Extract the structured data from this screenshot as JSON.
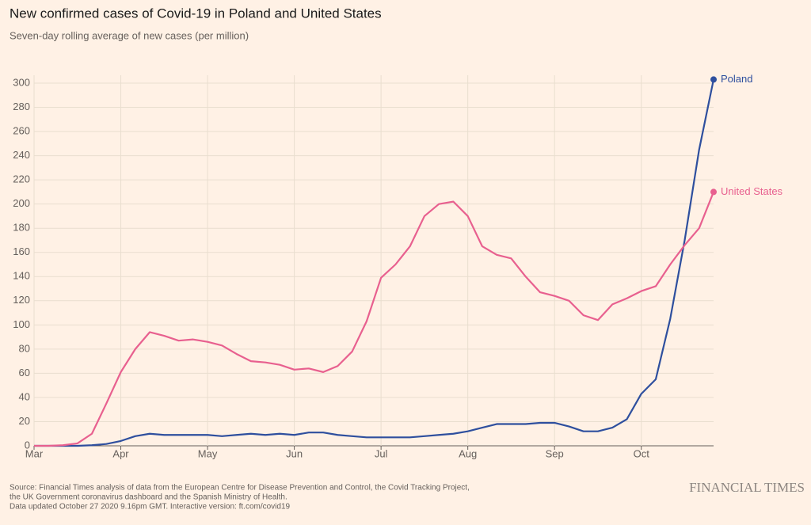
{
  "chart_data": {
    "type": "line",
    "title": "New confirmed cases of Covid-19 in Poland and United States",
    "subtitle": "Seven-day rolling average of new cases (per million)",
    "categories": [
      "Mar",
      null,
      null,
      null,
      null,
      null,
      "Apr",
      null,
      null,
      null,
      null,
      null,
      "May",
      null,
      null,
      null,
      null,
      null,
      "Jun",
      null,
      null,
      null,
      null,
      null,
      "Jul",
      null,
      null,
      null,
      null,
      null,
      "Aug",
      null,
      null,
      null,
      null,
      null,
      "Sep",
      null,
      null,
      null,
      null,
      null,
      "Oct",
      null,
      null,
      null,
      null,
      null
    ],
    "series": [
      {
        "name": "Poland",
        "color": "#2e4f9e",
        "values": [
          0,
          0,
          0,
          0,
          0.5,
          1.5,
          4,
          8,
          10,
          9,
          9,
          9,
          9,
          8,
          9,
          10,
          9,
          10,
          9,
          11,
          11,
          9,
          8,
          7,
          7,
          7,
          7,
          8,
          9,
          10,
          12,
          15,
          18,
          18,
          18,
          19,
          19,
          16,
          12,
          12,
          15,
          22,
          43,
          55,
          105,
          170,
          245,
          303
        ]
      },
      {
        "name": "United States",
        "color": "#e8608f",
        "values": [
          0,
          0,
          0.5,
          2,
          10,
          35,
          61,
          80,
          94,
          91,
          87,
          88,
          86,
          83,
          76,
          70,
          69,
          67,
          63,
          64,
          61,
          66,
          78,
          103,
          139,
          150,
          165,
          190,
          200,
          202,
          190,
          165,
          158,
          155,
          140,
          127,
          124,
          120,
          108,
          104,
          117,
          122,
          128,
          132,
          150,
          166,
          180,
          210
        ]
      }
    ],
    "ylim": [
      0,
      300
    ],
    "yticks": [
      0,
      20,
      40,
      60,
      80,
      100,
      120,
      140,
      160,
      180,
      200,
      220,
      240,
      260,
      280,
      300
    ],
    "grid": true,
    "source": [
      "Source: Financial Times analysis of data from the European Centre for Disease Prevention and Control, the Covid Tracking Project,",
      "the UK Government coronavirus dashboard and the Spanish Ministry of Health.",
      "Data updated October 27 2020 9.16pm GMT. Interactive version: ft.com/covid19"
    ],
    "brand": "FINANCIAL TIMES"
  }
}
